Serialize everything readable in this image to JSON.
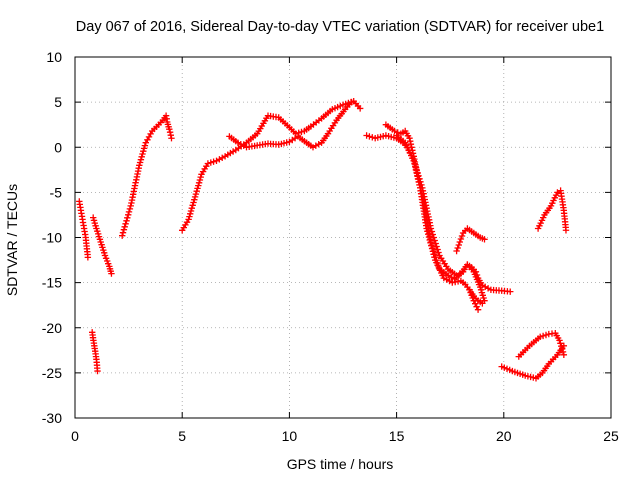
{
  "chart_data": {
    "type": "scatter",
    "title": "Day 067 of 2016, Sidereal Day-to-day VTEC variation (SDTVAR) for receiver ube1",
    "xlabel": "GPS time / hours",
    "ylabel": "SDTVAR / TECUs",
    "xlim": [
      0,
      25
    ],
    "ylim": [
      -30,
      10
    ],
    "xticks": [
      "0",
      "5",
      "10",
      "15",
      "20",
      "25"
    ],
    "yticks": [
      "-30",
      "-25",
      "-20",
      "-15",
      "-10",
      "-5",
      "0",
      "5",
      "10"
    ],
    "grid": true,
    "marker": "+",
    "color": "#ff0000",
    "series": [
      {
        "x": [
          0.2,
          0.35,
          0.5,
          0.6
        ],
        "y": [
          -6,
          -8,
          -10,
          -12.2
        ]
      },
      {
        "x": [
          0.8,
          0.9,
          1.0,
          1.05
        ],
        "y": [
          -20.5,
          -22,
          -23.5,
          -24.8
        ]
      },
      {
        "x": [
          0.85,
          1.0,
          1.2,
          1.4,
          1.6,
          1.7
        ],
        "y": [
          -7.8,
          -9,
          -10.5,
          -12,
          -13.2,
          -14
        ]
      },
      {
        "x": [
          2.2,
          2.6,
          3.0,
          3.3,
          3.6,
          3.9,
          4.1,
          4.25,
          4.3,
          4.4,
          4.5
        ],
        "y": [
          -9.8,
          -6.5,
          -2,
          0.5,
          1.8,
          2.5,
          3,
          3.5,
          2.8,
          2,
          1
        ]
      },
      {
        "x": [
          5.0,
          5.3,
          5.6,
          5.9,
          6.2,
          6.6,
          7.0,
          7.5,
          8.0,
          8.5,
          9.0,
          9.5,
          10.0,
          10.3,
          10.7,
          11.0,
          11.5,
          12.0,
          12.5,
          13.0,
          13.3
        ],
        "y": [
          -9.2,
          -8,
          -5.5,
          -3,
          -1.8,
          -1.5,
          -1,
          -0.3,
          0.5,
          1.5,
          3.5,
          3.3,
          2.2,
          1.5,
          1.8,
          2.3,
          3.2,
          4.2,
          4.7,
          5.1,
          4.3
        ]
      },
      {
        "x": [
          7.2,
          7.6,
          8.0,
          8.5,
          9.0,
          9.5,
          10.0,
          10.4,
          10.8,
          11.1,
          11.5,
          11.8,
          12.2,
          12.6,
          12.9
        ],
        "y": [
          1.2,
          0.5,
          0,
          0.2,
          0.4,
          0.3,
          0.6,
          1.2,
          0.5,
          0,
          0.5,
          1.5,
          3,
          4.2,
          5
        ]
      },
      {
        "x": [
          13.6,
          14.0,
          14.5,
          15.0,
          15.3,
          15.5,
          15.8,
          16.0,
          16.3,
          16.6,
          17.0,
          17.4,
          17.7,
          18.0,
          18.3,
          18.5,
          18.7,
          18.8,
          19.0,
          19.4,
          19.9,
          20.3
        ],
        "y": [
          1.3,
          1,
          1.3,
          1,
          0.5,
          0,
          -1.5,
          -3.5,
          -6.5,
          -10.5,
          -13.5,
          -14.2,
          -14.6,
          -14,
          -13,
          -13.3,
          -13.8,
          -14.5,
          -15.3,
          -15.8,
          -15.9,
          -16
        ]
      },
      {
        "x": [
          14.5,
          14.9,
          15.2,
          15.4,
          15.6,
          15.8,
          16.1,
          16.4,
          16.8,
          17.2,
          17.6,
          18.0,
          18.2,
          18.4,
          18.6,
          18.8,
          19.0
        ],
        "y": [
          2.5,
          1.8,
          1.5,
          1.8,
          1,
          -1,
          -4.5,
          -9,
          -12.5,
          -14.5,
          -15,
          -14.8,
          -15.2,
          -15.8,
          -16.5,
          -17,
          -17.3
        ]
      },
      {
        "x": [
          15.0,
          15.4,
          15.8,
          16.2,
          16.6,
          17.0,
          17.4,
          17.8,
          18.1,
          18.3,
          18.6,
          18.9,
          19.1
        ],
        "y": [
          1.3,
          0.5,
          -1.5,
          -4.5,
          -9,
          -12,
          -13.5,
          -14.2,
          -13.8,
          -13,
          -13.8,
          -15.5,
          -17
        ]
      },
      {
        "x": [
          17.8,
          18.1,
          18.3,
          18.6,
          18.9,
          19.1
        ],
        "y": [
          -11.5,
          -9.5,
          -9,
          -9.5,
          -10,
          -10.2
        ]
      },
      {
        "x": [
          18.4,
          18.6,
          18.8
        ],
        "y": [
          -15.8,
          -17,
          -18
        ]
      },
      {
        "x": [
          19.9,
          20.4,
          21.0,
          21.5,
          21.8,
          22.1,
          22.5,
          22.8
        ],
        "y": [
          -24.3,
          -24.8,
          -25.3,
          -25.6,
          -25,
          -24,
          -23,
          -22
        ]
      },
      {
        "x": [
          20.7,
          21.2,
          21.7,
          22.1,
          22.4,
          22.6,
          22.8
        ],
        "y": [
          -23.2,
          -22,
          -21,
          -20.7,
          -20.6,
          -21.4,
          -23
        ]
      },
      {
        "x": [
          21.6,
          21.9,
          22.2,
          22.5,
          22.65,
          22.8,
          22.9
        ],
        "y": [
          -9,
          -7.5,
          -6.5,
          -5,
          -4.8,
          -7,
          -9.2
        ]
      }
    ]
  }
}
